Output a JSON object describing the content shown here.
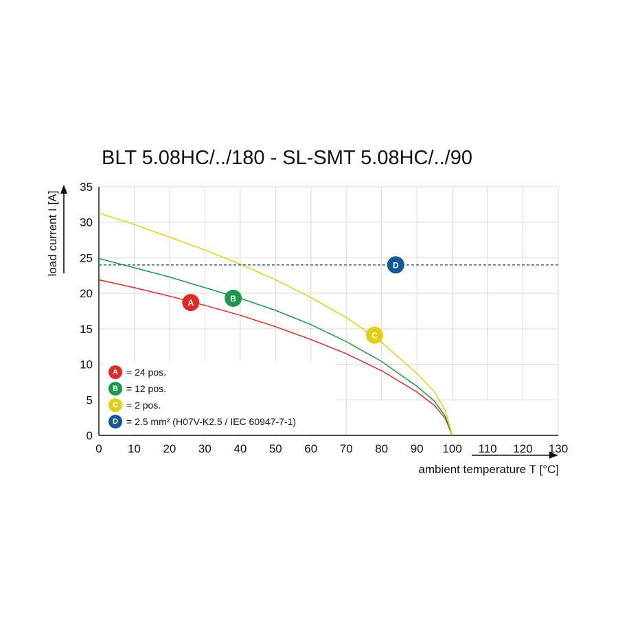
{
  "chart_data": {
    "type": "line",
    "title": "BLT 5.08HC/../180 - SL-SMT 5.08HC/../90",
    "xlabel": "ambient temperature T [°C]",
    "ylabel": "load current I [A]",
    "xlim": [
      0,
      130
    ],
    "ylim": [
      0,
      35
    ],
    "xticks": [
      "0",
      "10",
      "20",
      "30",
      "40",
      "50",
      "60",
      "70",
      "80",
      "90",
      "100",
      "110",
      "120",
      "130"
    ],
    "yticks": [
      "0",
      "5",
      "10",
      "15",
      "20",
      "25",
      "30",
      "35"
    ],
    "grid": true,
    "legend_position": "bottom-left",
    "series": [
      {
        "key": "A",
        "name": "= 24 pos.",
        "color": "#e02a27",
        "marker_at": [
          26,
          18.7
        ],
        "x": [
          0,
          10,
          20,
          30,
          40,
          50,
          60,
          70,
          80,
          90,
          95,
          98,
          100
        ],
        "y": [
          21.9,
          20.8,
          19.6,
          18.3,
          16.9,
          15.3,
          13.5,
          11.5,
          9.1,
          6.1,
          4.2,
          2.4,
          0
        ]
      },
      {
        "key": "B",
        "name": "= 12 pos.",
        "color": "#1a9a46",
        "marker_at": [
          38,
          19.3
        ],
        "x": [
          0,
          10,
          20,
          30,
          40,
          50,
          60,
          70,
          80,
          90,
          95,
          98,
          100
        ],
        "y": [
          24.9,
          23.6,
          22.3,
          20.8,
          19.3,
          17.6,
          15.6,
          13.2,
          10.4,
          6.9,
          4.8,
          2.7,
          0
        ]
      },
      {
        "key": "C",
        "name": "= 2 pos.",
        "color": "#e3cf12",
        "marker_at": [
          78,
          14.1
        ],
        "x": [
          0,
          10,
          20,
          30,
          40,
          50,
          60,
          70,
          80,
          90,
          95,
          98,
          100
        ],
        "y": [
          31.3,
          29.7,
          27.9,
          26.1,
          24.1,
          21.9,
          19.4,
          16.6,
          13.1,
          8.7,
          6.1,
          3.5,
          0
        ]
      },
      {
        "key": "D",
        "name": "= 2.5 mm² (H07V-K2.5 / IEC 60947-7-1)",
        "color": "#14579a",
        "marker_at": [
          84,
          24
        ],
        "style": "dashed",
        "x": [
          0,
          130
        ],
        "y": [
          24,
          24
        ]
      }
    ]
  }
}
